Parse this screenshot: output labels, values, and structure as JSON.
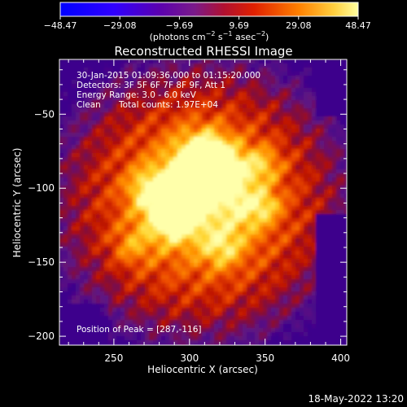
{
  "chart_data": {
    "type": "heatmap",
    "title": "Reconstructed RHESSI Image",
    "xlabel": "Heliocentric X (arcsec)",
    "ylabel": "Heliocentric Y (arcsec)",
    "xlim": [
      214,
      404
    ],
    "ylim": [
      -206,
      -13
    ],
    "x_ticks": [
      250,
      300,
      350,
      400
    ],
    "y_ticks": [
      -50,
      -100,
      -150,
      -200
    ],
    "x_tick_labels": [
      "250",
      "300",
      "350",
      "400"
    ],
    "y_tick_labels": [
      "−50",
      "−100",
      "−150",
      "−200"
    ],
    "colorbar": {
      "min": -48.47,
      "max": 48.47,
      "ticks": [
        -48.47,
        -29.08,
        -9.69,
        9.69,
        29.08,
        48.47
      ],
      "tick_labels": [
        "−48.47",
        "−29.08",
        "−9.69",
        "9.69",
        "29.08",
        "48.47"
      ],
      "unit_prefix": "(photons cm",
      "unit_sup1": "−2",
      "unit_mid1": " s",
      "unit_sup2": "−1",
      "unit_mid2": " asec",
      "unit_sup3": "−2",
      "unit_suffix": ")",
      "colors": [
        "#0000ff",
        "#5a00a8",
        "#7a2090",
        "#d01000",
        "#ff7a00",
        "#ffff90"
      ]
    },
    "peak": [
      287,
      -116
    ],
    "annotations": {
      "line1": "30-Jan-2015 01:09:36.000 to 01:15:20.000",
      "line2": "Detectors: 3F 5F 6F 7F 8F 9F, Att 1",
      "line3": "Energy Range: 3.0 - 6.0 keV",
      "line4a": "Clean",
      "line4b": "Total counts: 1.97E+04",
      "peak_label": "Position of Peak = [287,-116]"
    }
  },
  "footer": {
    "timestamp": "18-May-2022 13:20"
  }
}
